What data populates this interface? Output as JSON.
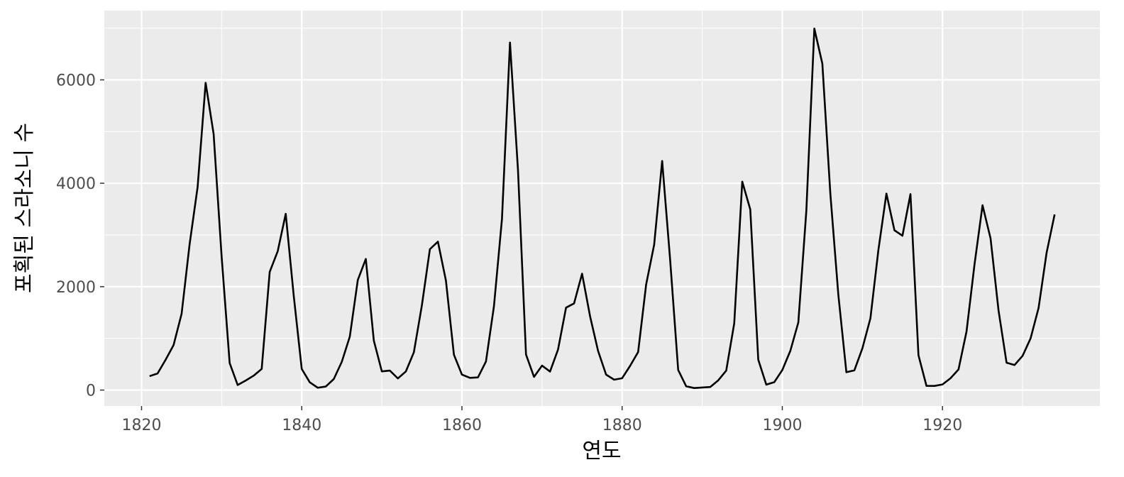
{
  "chart_data": {
    "type": "line",
    "x_label": "연도",
    "y_label": "포획된 스라소니 수",
    "x": [
      1821,
      1822,
      1823,
      1824,
      1825,
      1826,
      1827,
      1828,
      1829,
      1830,
      1831,
      1832,
      1833,
      1834,
      1835,
      1836,
      1837,
      1838,
      1839,
      1840,
      1841,
      1842,
      1843,
      1844,
      1845,
      1846,
      1847,
      1848,
      1849,
      1850,
      1851,
      1852,
      1853,
      1854,
      1855,
      1856,
      1857,
      1858,
      1859,
      1860,
      1861,
      1862,
      1863,
      1864,
      1865,
      1866,
      1867,
      1868,
      1869,
      1870,
      1871,
      1872,
      1873,
      1874,
      1875,
      1876,
      1877,
      1878,
      1879,
      1880,
      1881,
      1882,
      1883,
      1884,
      1885,
      1886,
      1887,
      1888,
      1889,
      1890,
      1891,
      1892,
      1893,
      1894,
      1895,
      1896,
      1897,
      1898,
      1899,
      1900,
      1901,
      1902,
      1903,
      1904,
      1905,
      1906,
      1907,
      1908,
      1909,
      1910,
      1911,
      1912,
      1913,
      1914,
      1915,
      1916,
      1917,
      1918,
      1919,
      1920,
      1921,
      1922,
      1923,
      1924,
      1925,
      1926,
      1927,
      1928,
      1929,
      1930,
      1931,
      1932,
      1933,
      1934
    ],
    "series": [
      {
        "color": "#000000",
        "values": [
          269,
          321,
          585,
          871,
          1475,
          2821,
          3928,
          5943,
          4950,
          2577,
          523,
          98,
          184,
          279,
          409,
          2285,
          2685,
          3409,
          1824,
          409,
          151,
          45,
          68,
          213,
          546,
          1033,
          2129,
          2536,
          957,
          361,
          377,
          225,
          360,
          731,
          1638,
          2725,
          2871,
          2119,
          684,
          299,
          236,
          245,
          552,
          1623,
          3311,
          6721,
          4254,
          687,
          255,
          473,
          358,
          784,
          1594,
          1676,
          2251,
          1426,
          756,
          299,
          201,
          229,
          469,
          736,
          2042,
          2811,
          4431,
          2511,
          389,
          73,
          39,
          49,
          59,
          188,
          377,
          1292,
          4031,
          3495,
          587,
          105,
          153,
          387,
          758,
          1307,
          3465,
          6991,
          6313,
          3794,
          1836,
          345,
          382,
          808,
          1388,
          2713,
          3800,
          3091,
          2985,
          3790,
          674,
          81,
          80,
          108,
          229,
          399,
          1132,
          2432,
          3574,
          2935,
          1537,
          529,
          485,
          662,
          1000,
          1590,
          2657,
          3396
        ]
      }
    ],
    "xlim": [
      1815.35,
      1939.65
    ],
    "xticks": [
      1820,
      1840,
      1860,
      1880,
      1900,
      1920
    ],
    "ylim": [
      -308.6,
      7338.6
    ],
    "yticks": [
      0,
      2000,
      4000,
      6000
    ],
    "grid": true,
    "minor_grid": true
  }
}
